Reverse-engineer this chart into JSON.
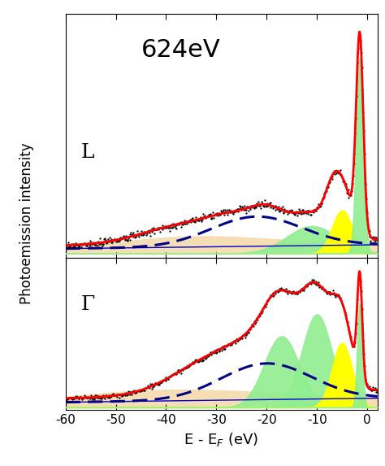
{
  "title": "624eV",
  "xlabel": "E - E$_F$ (eV)",
  "ylabel": "Photoemission intensity",
  "xlim": [
    -60,
    2
  ],
  "background_color": "#ffffff",
  "label_L": "L",
  "label_Gamma": "Γ",
  "title_fontsize": 22,
  "axis_label_fontsize": 13,
  "xticks": [
    -60,
    -50,
    -40,
    -30,
    -20,
    -10,
    0
  ]
}
